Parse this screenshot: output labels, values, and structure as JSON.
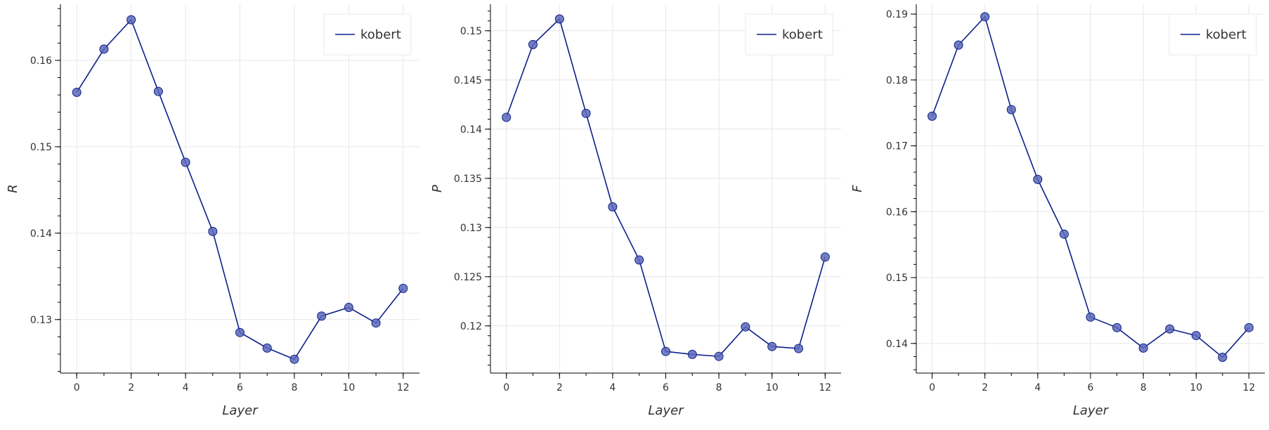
{
  "chart_data": [
    {
      "type": "line",
      "xlabel": "Layer",
      "ylabel": "R",
      "x": [
        0,
        1,
        2,
        3,
        4,
        5,
        6,
        7,
        8,
        9,
        10,
        11,
        12
      ],
      "series": [
        {
          "name": "kobert",
          "values": [
            0.1563,
            0.1613,
            0.1647,
            0.1564,
            0.1482,
            0.1402,
            0.1285,
            0.1267,
            0.1254,
            0.1304,
            0.1314,
            0.1296,
            0.1336
          ]
        }
      ],
      "xlim": [
        -0.6,
        12.6
      ],
      "ylim": [
        0.1238,
        0.1665
      ],
      "xticks": [
        "0",
        "2",
        "4",
        "6",
        "8",
        "10",
        "12"
      ],
      "yticks": [
        "0.13",
        "0.14",
        "0.15",
        "0.16"
      ],
      "line_color": "#0d1f8a",
      "marker_color": "#5a69b8",
      "grid": true,
      "legend_position": "top-right"
    },
    {
      "type": "line",
      "xlabel": "Layer",
      "ylabel": "P",
      "x": [
        0,
        1,
        2,
        3,
        4,
        5,
        6,
        7,
        8,
        9,
        10,
        11,
        12
      ],
      "series": [
        {
          "name": "kobert",
          "values": [
            0.1412,
            0.1486,
            0.1512,
            0.1416,
            0.1321,
            0.1267,
            0.1174,
            0.1171,
            0.1169,
            0.1199,
            0.1179,
            0.1177,
            0.127
          ]
        }
      ],
      "xlim": [
        -0.6,
        12.6
      ],
      "ylim": [
        0.1152,
        0.1527
      ],
      "xticks": [
        "0",
        "2",
        "4",
        "6",
        "8",
        "10",
        "12"
      ],
      "yticks": [
        "0.12",
        "0.125",
        "0.13",
        "0.135",
        "0.14",
        "0.145",
        "0.15"
      ],
      "line_color": "#0d1f8a",
      "marker_color": "#5a69b8",
      "grid": true,
      "legend_position": "top-right"
    },
    {
      "type": "line",
      "xlabel": "Layer",
      "ylabel": "F",
      "x": [
        0,
        1,
        2,
        3,
        4,
        5,
        6,
        7,
        8,
        9,
        10,
        11,
        12
      ],
      "series": [
        {
          "name": "kobert",
          "values": [
            0.1745,
            0.1853,
            0.1896,
            0.1755,
            0.1649,
            0.1566,
            0.144,
            0.1424,
            0.1393,
            0.1422,
            0.1412,
            0.1379,
            0.1424
          ]
        }
      ],
      "xlim": [
        -0.6,
        12.6
      ],
      "ylim": [
        0.1355,
        0.1915
      ],
      "xticks": [
        "0",
        "2",
        "4",
        "6",
        "8",
        "10",
        "12"
      ],
      "yticks": [
        "0.14",
        "0.15",
        "0.16",
        "0.17",
        "0.18",
        "0.19"
      ],
      "line_color": "#0d1f8a",
      "marker_color": "#5a69b8",
      "grid": true,
      "legend_position": "top-right"
    }
  ]
}
